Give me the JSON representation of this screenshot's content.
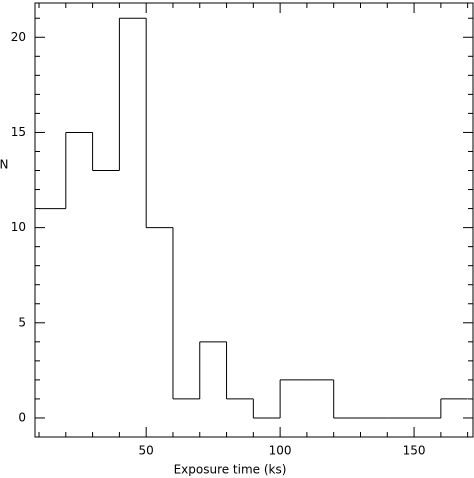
{
  "chart_data": {
    "type": "histogram",
    "x_label": "Exposure time (ks)",
    "y_label": "N",
    "bins": [
      10,
      20,
      30,
      40,
      50,
      60,
      70,
      80,
      90,
      100,
      110,
      120,
      130,
      140,
      150,
      160,
      170
    ],
    "values": [
      11,
      15,
      13,
      21,
      10,
      1,
      4,
      1,
      0,
      2,
      2,
      0,
      0,
      0,
      0,
      1
    ],
    "color": "#000000",
    "xlim": [
      8.5,
      172
    ],
    "xticks": [
      50,
      100,
      150
    ],
    "xminorticks": [
      10,
      20,
      30,
      40,
      60,
      70,
      80,
      90,
      110,
      120,
      130,
      140,
      160,
      170
    ],
    "ylim": [
      -1,
      21.8
    ],
    "yticks": [
      0,
      5,
      10,
      15,
      20
    ],
    "yminorticks": [
      1,
      2,
      3,
      4,
      6,
      7,
      8,
      9,
      11,
      12,
      13,
      14,
      16,
      17,
      18,
      19,
      21
    ]
  }
}
